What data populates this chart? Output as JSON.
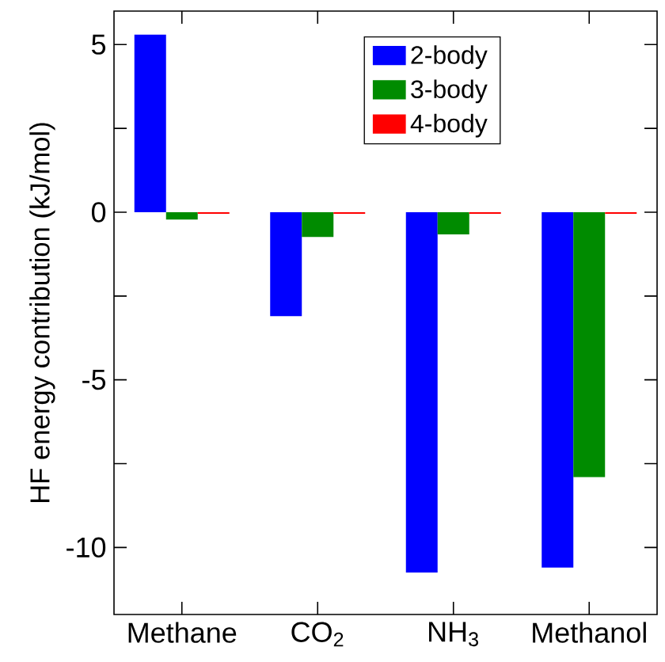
{
  "chart_data": {
    "type": "bar",
    "ylabel": "HF energy contribution (kJ/mol)",
    "categories": [
      "Methane",
      "CO$_{2}$",
      "NH$_{3}$",
      "Methanol"
    ],
    "series": [
      {
        "name": "2-body",
        "color": "#0000ff",
        "values": [
          5.3,
          -3.1,
          -10.75,
          -10.6
        ]
      },
      {
        "name": "3-body",
        "color": "#008b00",
        "values": [
          -0.22,
          -0.74,
          -0.66,
          -7.9
        ]
      },
      {
        "name": "4-body",
        "color": "#ff0000",
        "values": [
          -0.05,
          -0.05,
          -0.05,
          -0.05
        ]
      }
    ],
    "ylim": [
      -12,
      6
    ],
    "yticks": [
      5,
      {
        "value": 2.5,
        "label": null
      },
      0,
      {
        "value": -2.5,
        "label": null
      },
      -5,
      {
        "value": -7.5,
        "label": null
      },
      -10
    ],
    "grid": false,
    "legend": "top right"
  }
}
